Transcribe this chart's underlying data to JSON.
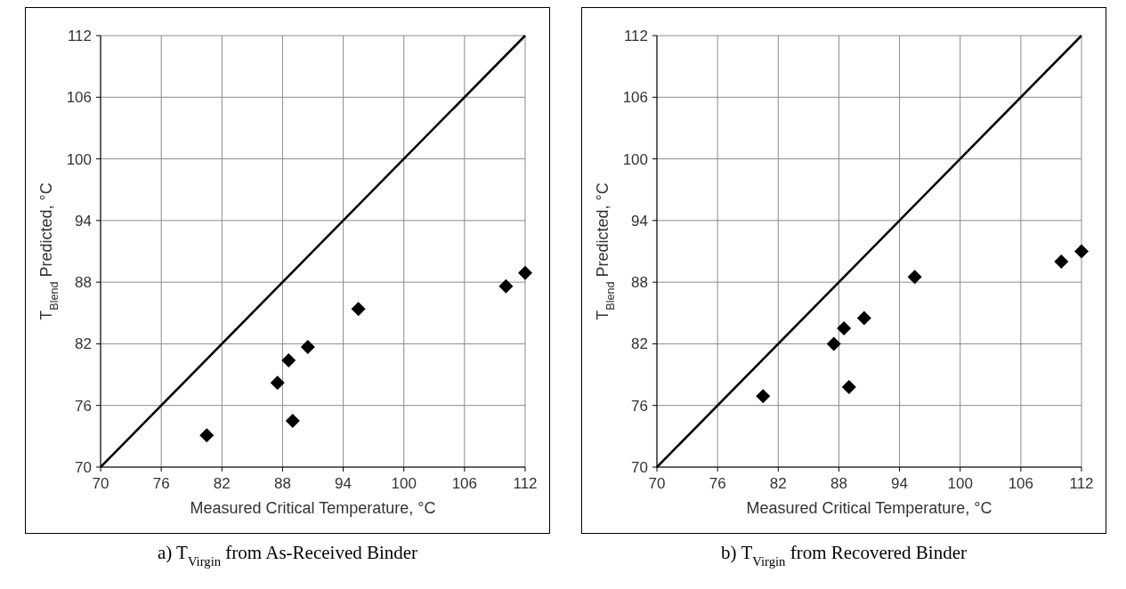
{
  "chart_data": [
    {
      "type": "scatter",
      "xlabel": "Measured Critical Temperature, °C",
      "ylabel": "T$_{Blend}$ Predicted, °C",
      "xlim": [
        70,
        112
      ],
      "ylim": [
        70,
        112
      ],
      "xticks": [
        70,
        76,
        82,
        88,
        94,
        100,
        106,
        112
      ],
      "yticks": [
        70,
        76,
        82,
        88,
        94,
        100,
        106,
        112
      ],
      "grid": true,
      "marker": "diamond",
      "annotations": [
        "a) T$_{Virgin}$ from As-Received Binder"
      ],
      "series": [
        {
          "type": "line",
          "color": "#000000",
          "x": [
            70,
            112
          ],
          "values": [
            70,
            112
          ],
          "marker": "none"
        },
        {
          "color": "#000000",
          "x": [
            80.5,
            87.5,
            88.6,
            90.5,
            89.0,
            95.5,
            110.1,
            112.0
          ],
          "values": [
            73.1,
            78.2,
            80.4,
            81.7,
            74.5,
            85.4,
            87.6,
            88.9
          ]
        }
      ]
    },
    {
      "type": "scatter",
      "xlabel": "Measured Critical Temperature, °C",
      "ylabel": "T$_{Blend}$ Predicted, °C",
      "xlim": [
        70,
        112
      ],
      "ylim": [
        70,
        112
      ],
      "xticks": [
        70,
        76,
        82,
        88,
        94,
        100,
        106,
        112
      ],
      "yticks": [
        70,
        76,
        82,
        88,
        94,
        100,
        106,
        112
      ],
      "grid": true,
      "marker": "diamond",
      "annotations": [
        "b) T$_{Virgin}$ from Recovered Binder"
      ],
      "series": [
        {
          "type": "line",
          "color": "#000000",
          "x": [
            70,
            112
          ],
          "values": [
            70,
            112
          ],
          "marker": "none"
        },
        {
          "color": "#000000",
          "x": [
            80.5,
            87.5,
            88.5,
            90.5,
            89.0,
            95.5,
            110.0,
            112.0
          ],
          "values": [
            76.9,
            82.0,
            83.5,
            84.5,
            77.8,
            88.5,
            90.0,
            91.0
          ]
        }
      ]
    }
  ]
}
